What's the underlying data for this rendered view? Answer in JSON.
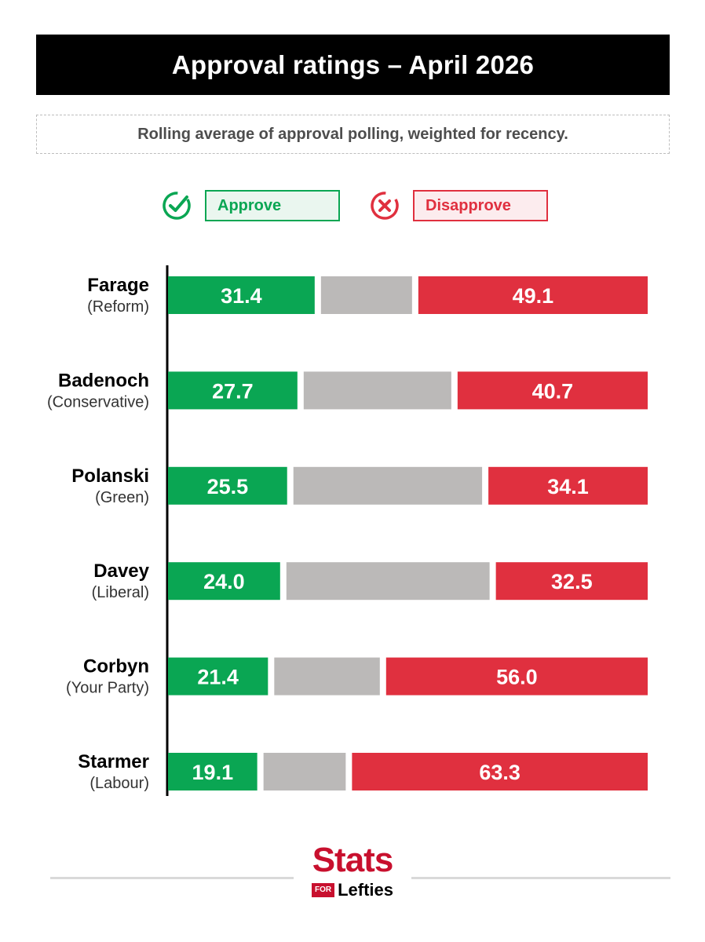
{
  "title": "Approval ratings – April 2026",
  "subtitle": "Rolling average of approval polling, weighted for recency.",
  "legend": {
    "approve": "Approve",
    "disapprove": "Disapprove",
    "approve_icon": "check-circle-icon",
    "disapprove_icon": "x-circle-icon"
  },
  "colors": {
    "approve": "#0aa653",
    "neutral": "#bbb9b8",
    "disapprove": "#e0303f"
  },
  "chart_data": {
    "type": "bar",
    "orientation": "horizontal",
    "stacked": true,
    "title": "Approval ratings – April 2026",
    "subtitle": "Rolling average of approval polling, weighted for recency.",
    "xlim": [
      0,
      100
    ],
    "grid": false,
    "legend_position": "top",
    "categories": [
      "Farage",
      "Badenoch",
      "Polanski",
      "Davey",
      "Corbyn",
      "Starmer"
    ],
    "parties": [
      "(Reform)",
      "(Conservative)",
      "(Green)",
      "(Liberal)",
      "(Your Party)",
      "(Labour)"
    ],
    "series": [
      {
        "name": "Approve",
        "values": [
          31.4,
          27.7,
          25.5,
          24.0,
          21.4,
          19.1
        ],
        "labels": [
          "31.4",
          "27.7",
          "25.5",
          "24.0",
          "21.4",
          "19.1"
        ]
      },
      {
        "values": [
          19.5,
          31.6,
          40.4,
          43.5,
          22.6,
          17.6
        ]
      },
      {
        "name": "Disapprove",
        "values": [
          49.1,
          40.7,
          34.1,
          32.5,
          56.0,
          63.3
        ],
        "labels": [
          "49.1",
          "40.7",
          "34.1",
          "32.5",
          "56.0",
          "63.3"
        ]
      }
    ]
  },
  "logo": {
    "main": "Stats",
    "for": "FOR",
    "lefties": "Lefties"
  }
}
